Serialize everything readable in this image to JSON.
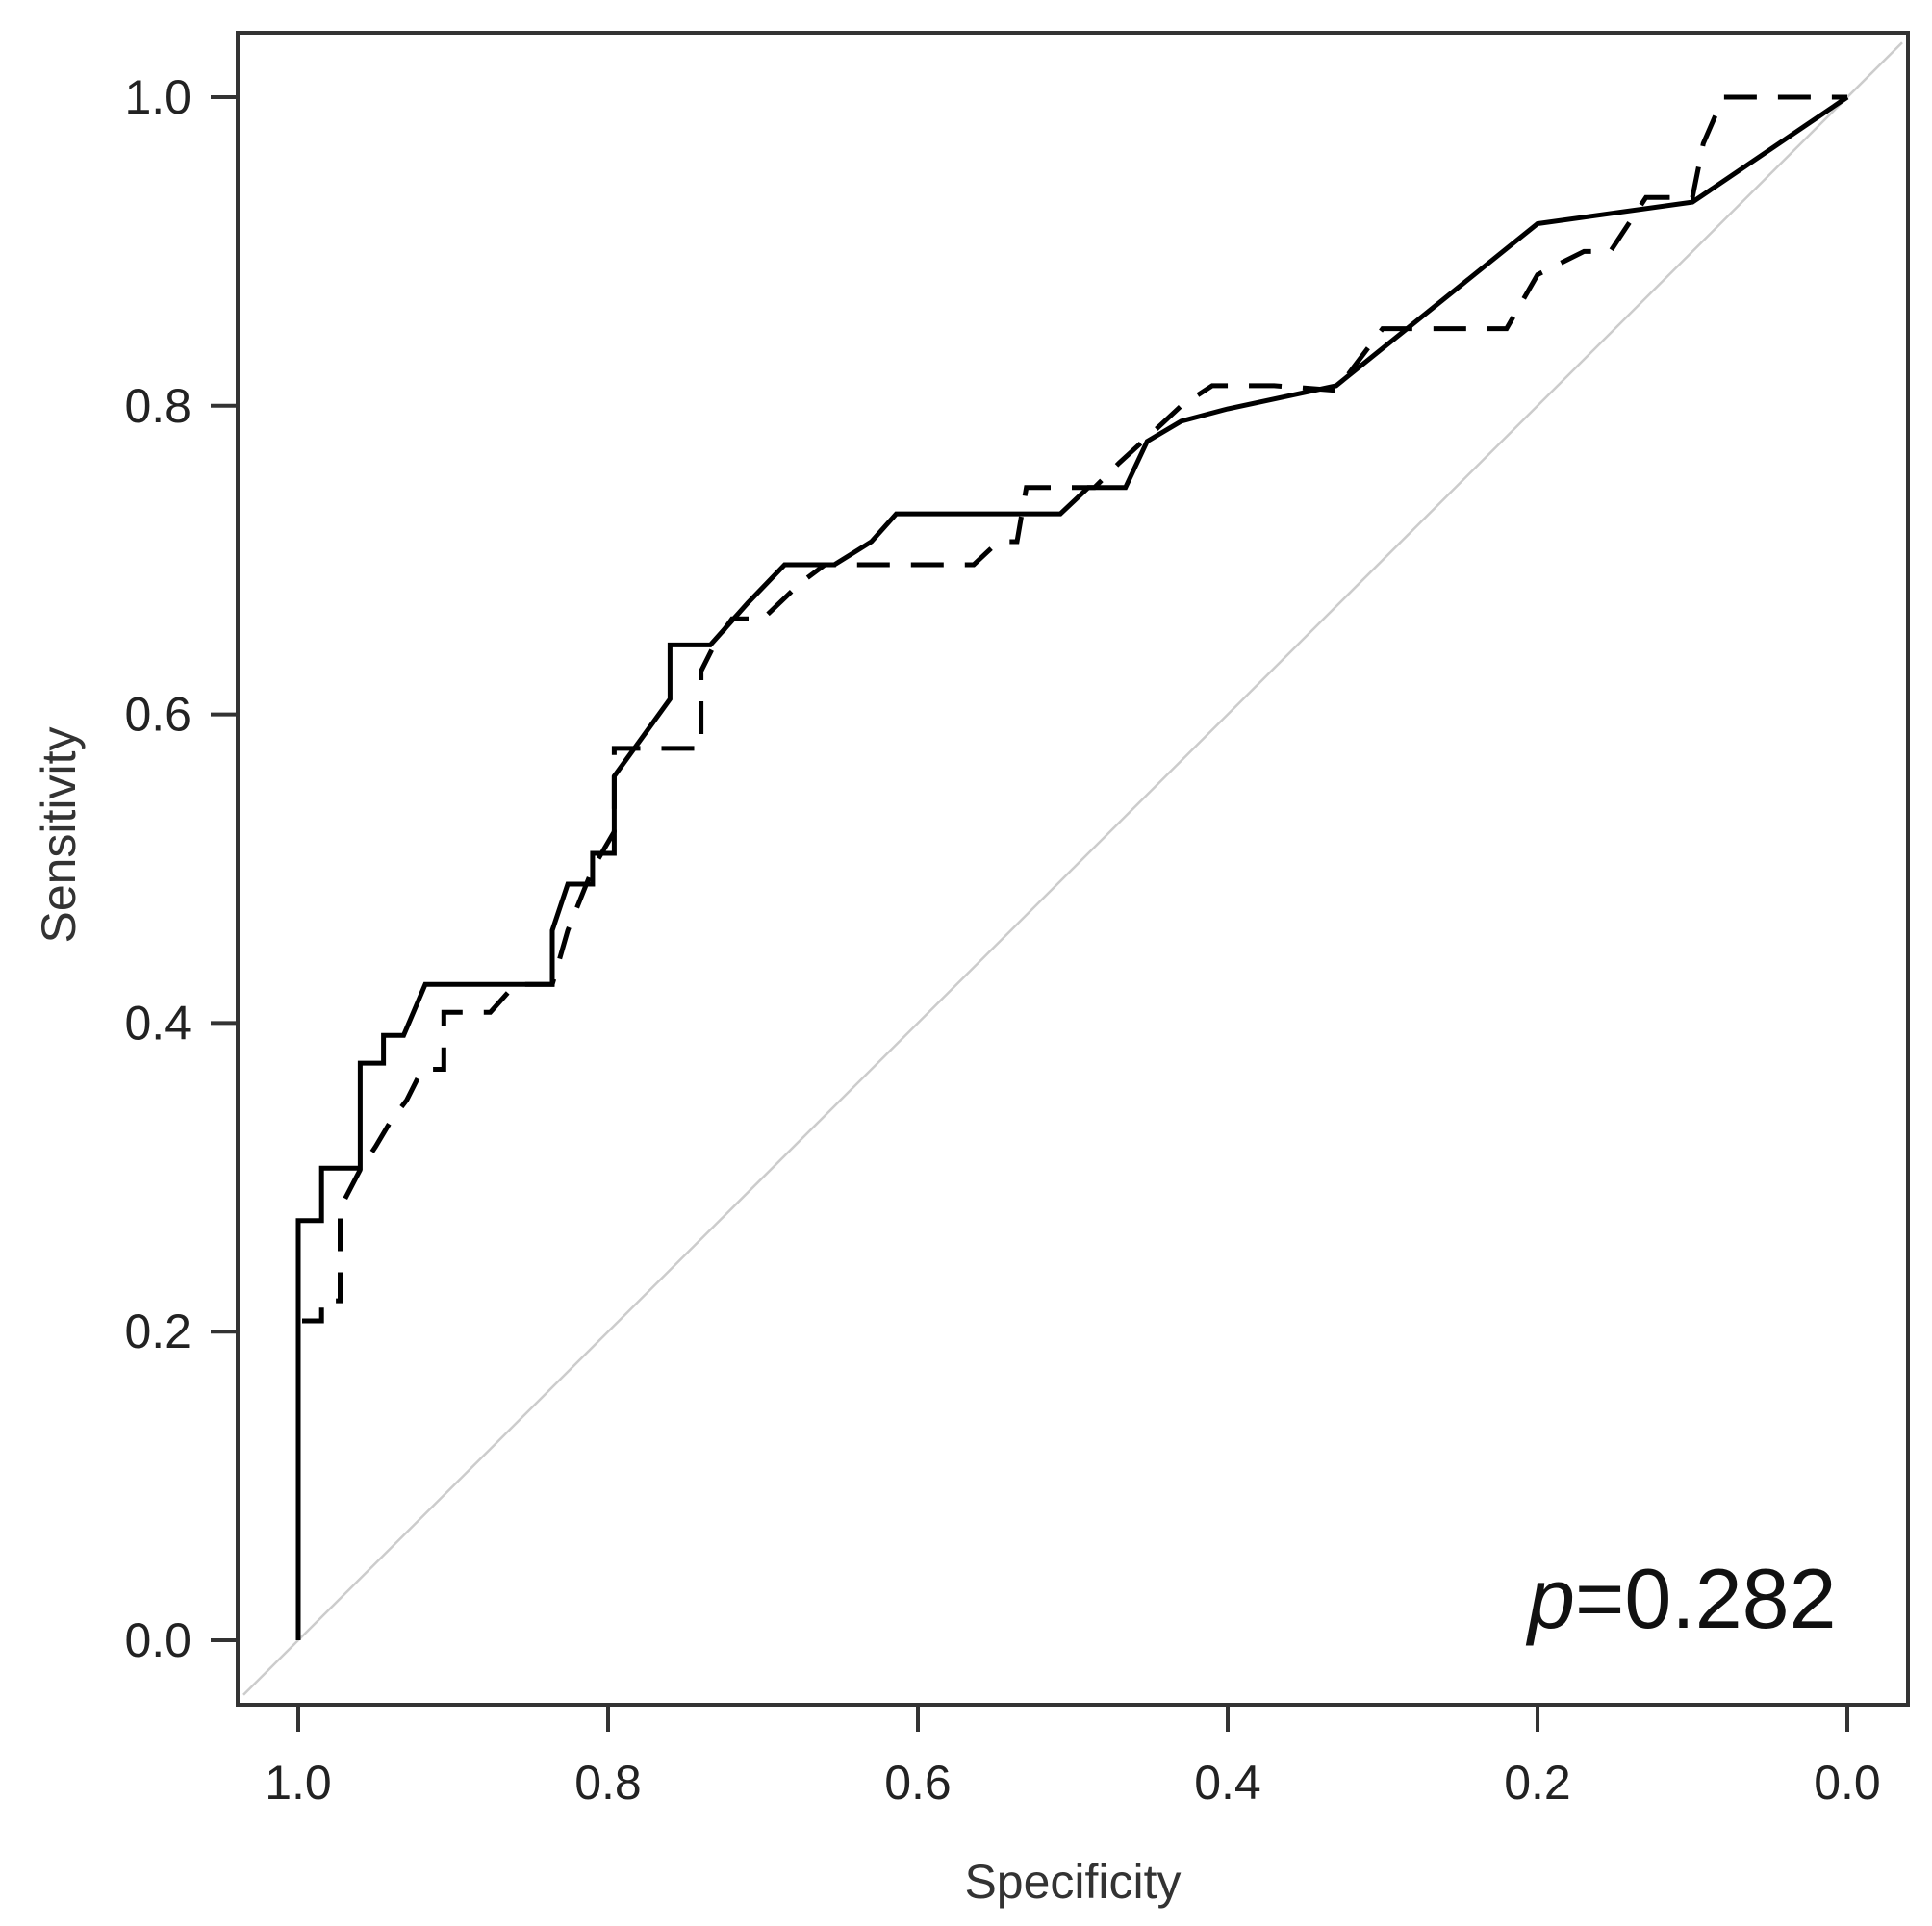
{
  "chart_data": {
    "type": "line",
    "title": "",
    "xlabel": "Specificity",
    "ylabel": "Sensitivity",
    "x_reversed": true,
    "xlim": [
      1.0,
      0.0
    ],
    "ylim": [
      0.0,
      1.0
    ],
    "x_ticks": [
      "1.0",
      "0.8",
      "0.6",
      "0.4",
      "0.2",
      "0.0"
    ],
    "y_ticks": [
      "0.0",
      "0.2",
      "0.4",
      "0.6",
      "0.8",
      "1.0"
    ],
    "grid": false,
    "legend": "none",
    "annotation": {
      "p_symbol": "p",
      "p_rest": "=0.282",
      "position": "bottom-right"
    },
    "reference_line": {
      "x": [
        1.0,
        0.0
      ],
      "y": [
        0.0,
        1.0
      ],
      "color": "#cccccc"
    },
    "series": [
      {
        "style": "solid",
        "color": "#000000",
        "x": [
          1.0,
          1.0,
          0.985,
          0.985,
          0.975,
          0.975,
          0.96,
          0.96,
          0.945,
          0.945,
          0.932,
          0.918,
          0.836,
          0.836,
          0.826,
          0.816,
          0.81,
          0.81,
          0.796,
          0.796,
          0.76,
          0.76,
          0.734,
          0.71,
          0.686,
          0.654,
          0.63,
          0.614,
          0.508,
          0.49,
          0.466,
          0.452,
          0.43,
          0.4,
          0.33,
          0.2,
          0.1,
          0.0
        ],
        "y": [
          0.0,
          0.272,
          0.272,
          0.306,
          0.306,
          0.306,
          0.306,
          0.374,
          0.374,
          0.392,
          0.392,
          0.425,
          0.425,
          0.46,
          0.49,
          0.49,
          0.49,
          0.51,
          0.51,
          0.56,
          0.61,
          0.645,
          0.645,
          0.672,
          0.697,
          0.697,
          0.712,
          0.73,
          0.73,
          0.747,
          0.747,
          0.777,
          0.79,
          0.798,
          0.813,
          0.918,
          0.932,
          1.0
        ]
      },
      {
        "style": "dashed",
        "color": "#000000",
        "x": [
          1.0,
          1.0,
          0.985,
          0.985,
          0.973,
          0.973,
          0.96,
          0.95,
          0.94,
          0.93,
          0.92,
          0.906,
          0.906,
          0.876,
          0.86,
          0.836,
          0.826,
          0.81,
          0.796,
          0.796,
          0.79,
          0.772,
          0.74,
          0.74,
          0.73,
          0.72,
          0.7,
          0.676,
          0.66,
          0.646,
          0.564,
          0.548,
          0.536,
          0.53,
          0.486,
          0.47,
          0.446,
          0.43,
          0.41,
          0.37,
          0.33,
          0.3,
          0.27,
          0.22,
          0.2,
          0.17,
          0.153,
          0.13,
          0.1,
          0.093,
          0.08,
          0.0
        ],
        "y": [
          0.0,
          0.207,
          0.207,
          0.22,
          0.22,
          0.28,
          0.305,
          0.32,
          0.337,
          0.35,
          0.37,
          0.37,
          0.407,
          0.407,
          0.425,
          0.425,
          0.46,
          0.5,
          0.524,
          0.578,
          0.578,
          0.578,
          0.578,
          0.628,
          0.648,
          0.662,
          0.662,
          0.685,
          0.697,
          0.697,
          0.697,
          0.712,
          0.712,
          0.747,
          0.747,
          0.763,
          0.785,
          0.8,
          0.813,
          0.813,
          0.81,
          0.85,
          0.85,
          0.85,
          0.885,
          0.9,
          0.9,
          0.935,
          0.935,
          0.97,
          1.0,
          1.0
        ]
      }
    ]
  }
}
